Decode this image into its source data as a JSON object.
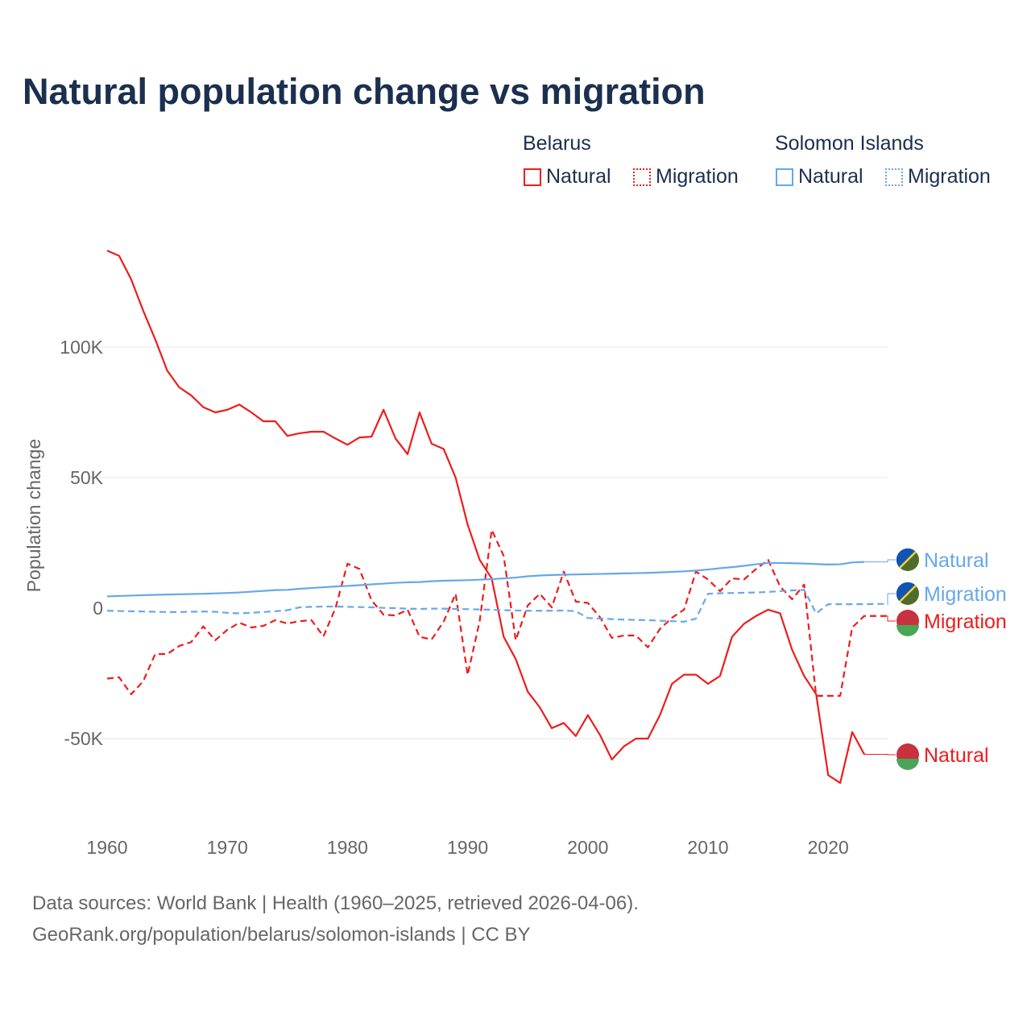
{
  "title": "Natural population change vs migration",
  "legend": {
    "groups": [
      {
        "name": "Belarus",
        "items": [
          "Natural",
          "Migration"
        ],
        "color": "#ee1c1c"
      },
      {
        "name": "Solomon Islands",
        "items": [
          "Natural",
          "Migration"
        ],
        "color": "#64a8ea"
      }
    ]
  },
  "footer": {
    "line1": "Data sources: World Bank | Health (1960–2025, retrieved 2026-04-06).",
    "line2": "GeoRank.org/population/belarus/solomon-islands | CC BY"
  },
  "chart_data": {
    "type": "line",
    "title": "Natural population change vs migration",
    "xlabel": "",
    "ylabel": "Population change",
    "xlim": [
      1960,
      2025
    ],
    "ylim": [
      -80000,
      140000
    ],
    "xticks": [
      1960,
      1970,
      1980,
      1990,
      2000,
      2010,
      2020
    ],
    "xtick_labels": [
      "1960",
      "1970",
      "1980",
      "1990",
      "2000",
      "2010",
      "2020"
    ],
    "yticks": [
      -50000,
      0,
      50000,
      100000
    ],
    "ytick_labels": [
      "-50K",
      "0",
      "50K",
      "100K"
    ],
    "grid": true,
    "series": [
      {
        "name": "Belarus Natural",
        "label": "Natural",
        "color": "#ee1c1c",
        "dash": false,
        "start": 1960,
        "values": [
          137000,
          135000,
          126000,
          114000,
          103000,
          91000,
          84600,
          81500,
          77000,
          75000,
          76000,
          78000,
          75000,
          71600,
          71600,
          66000,
          67000,
          67600,
          67600,
          65000,
          62600,
          65400,
          65700,
          76000,
          65000,
          59000,
          75000,
          63000,
          61000,
          50000,
          32000,
          18500,
          11400,
          -11000,
          -19500,
          -32000,
          -38000,
          -46000,
          -44000,
          -49000,
          -41000,
          -48500,
          -58000,
          -53000,
          -50000,
          -50000,
          -41000,
          -29000,
          -25500,
          -25500,
          -29000,
          -26000,
          -11000,
          -6000,
          -3000,
          -600,
          -2000,
          -16000,
          -26000,
          -33000,
          -64000,
          -67000,
          -47500,
          -56000
        ]
      },
      {
        "name": "Belarus Migration",
        "label": "Migration",
        "color": "#ee1c1c",
        "dash": true,
        "start": 1960,
        "values": [
          -27000,
          -26500,
          -33000,
          -28000,
          -17600,
          -17600,
          -14500,
          -13000,
          -7000,
          -12300,
          -8300,
          -5600,
          -7400,
          -6800,
          -4600,
          -5900,
          -5000,
          -4600,
          -10800,
          0,
          17000,
          15000,
          3000,
          -2500,
          -2800,
          -600,
          -11000,
          -12000,
          -5200,
          5500,
          -25600,
          -5000,
          30000,
          20000,
          -12300,
          1000,
          5500,
          300,
          14000,
          2500,
          2000,
          -3400,
          -11400,
          -10500,
          -10500,
          -15000,
          -8000,
          -3700,
          -600,
          14000,
          11000,
          6500,
          11400,
          11000,
          15000,
          18500,
          8300,
          3400,
          9000,
          -33600,
          -33600,
          -33600,
          -7400,
          -3000,
          -3000,
          -3000
        ]
      },
      {
        "name": "Solomon Islands Natural",
        "label": "Natural",
        "color": "#64a8ea",
        "dash": false,
        "start": 1960,
        "values": [
          4500,
          4650,
          4800,
          4950,
          5100,
          5200,
          5300,
          5400,
          5500,
          5650,
          5800,
          6000,
          6300,
          6600,
          6900,
          7000,
          7400,
          7700,
          8000,
          8300,
          8500,
          8800,
          9100,
          9400,
          9700,
          9900,
          10000,
          10300,
          10500,
          10600,
          10700,
          10900,
          11100,
          11400,
          11700,
          12200,
          12500,
          12700,
          12800,
          12900,
          13000,
          13100,
          13200,
          13300,
          13400,
          13500,
          13700,
          13900,
          14100,
          14400,
          14800,
          15300,
          15700,
          16200,
          16800,
          17300,
          17300,
          17200,
          17100,
          16900,
          16700,
          16800,
          17500,
          17700
        ]
      },
      {
        "name": "Solomon Islands Migration",
        "label": "Migration",
        "color": "#64a8ea",
        "dash": true,
        "start": 1960,
        "values": [
          -1000,
          -1100,
          -1200,
          -1300,
          -1400,
          -1500,
          -1500,
          -1400,
          -1300,
          -1400,
          -1800,
          -2000,
          -1800,
          -1500,
          -1200,
          -800,
          300,
          500,
          600,
          600,
          500,
          400,
          300,
          100,
          0,
          -200,
          -300,
          -200,
          -200,
          -300,
          -400,
          -500,
          -600,
          -800,
          -900,
          -1000,
          -1000,
          -1000,
          -900,
          -1200,
          -3800,
          -4000,
          -4200,
          -4400,
          -4500,
          -4600,
          -4800,
          -5000,
          -5200,
          -4000,
          5500,
          5700,
          5800,
          5900,
          6000,
          6200,
          6500,
          6800,
          7000,
          -2000,
          1500,
          1500,
          1500,
          1500,
          1600,
          1600
        ]
      }
    ]
  }
}
